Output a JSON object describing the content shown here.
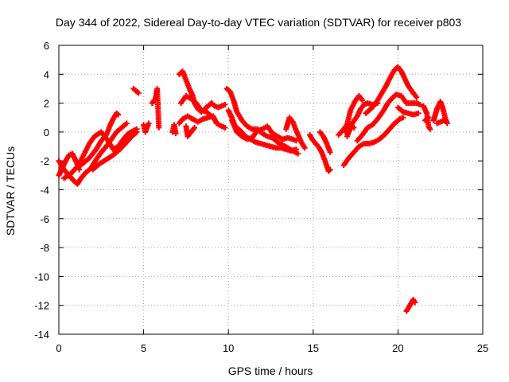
{
  "chart_data": {
    "type": "scatter",
    "title": "Day 344 of 2022, Sidereal Day-to-day VTEC variation (SDTVAR) for receiver p803",
    "xlabel": "GPS time / hours",
    "ylabel": "SDTVAR / TECUs",
    "xlim": [
      0,
      25
    ],
    "ylim": [
      -14,
      6
    ],
    "xticks": [
      0,
      5,
      10,
      15,
      20,
      25
    ],
    "yticks": [
      -14,
      -12,
      -10,
      -8,
      -6,
      -4,
      -2,
      0,
      2,
      4,
      6
    ],
    "grid": true,
    "marker": "+",
    "color": "#ff0000",
    "segments": [
      [
        [
          0.0,
          -3.0
        ],
        [
          0.2,
          -2.5
        ],
        [
          0.4,
          -2.0
        ],
        [
          0.6,
          -1.6
        ],
        [
          0.8,
          -1.5
        ],
        [
          1.0,
          -2.0
        ],
        [
          1.2,
          -2.6
        ]
      ],
      [
        [
          0.0,
          -2.0
        ],
        [
          0.3,
          -2.6
        ],
        [
          0.6,
          -3.0
        ],
        [
          0.9,
          -3.4
        ],
        [
          1.1,
          -3.6
        ],
        [
          1.3,
          -3.2
        ],
        [
          1.6,
          -2.8
        ],
        [
          1.9,
          -2.5
        ],
        [
          2.2,
          -1.9
        ],
        [
          2.5,
          -1.4
        ],
        [
          2.8,
          -1.0
        ],
        [
          3.1,
          -0.5
        ],
        [
          3.4,
          0.0
        ],
        [
          3.7,
          0.3
        ],
        [
          4.0,
          0.6
        ]
      ],
      [
        [
          0.3,
          -3.2
        ],
        [
          0.7,
          -2.9
        ],
        [
          1.0,
          -2.5
        ],
        [
          1.4,
          -2.2
        ],
        [
          1.8,
          -1.8
        ],
        [
          2.2,
          -1.2
        ],
        [
          2.5,
          -0.6
        ],
        [
          2.8,
          -0.2
        ],
        [
          3.0,
          0.4
        ],
        [
          3.2,
          0.9
        ],
        [
          3.4,
          1.3
        ],
        [
          3.5,
          1.2
        ]
      ],
      [
        [
          1.2,
          -2.2
        ],
        [
          1.5,
          -1.5
        ],
        [
          1.8,
          -0.8
        ],
        [
          2.1,
          -0.3
        ],
        [
          2.5,
          0.0
        ],
        [
          2.9,
          -0.6
        ],
        [
          3.2,
          -1.2
        ],
        [
          3.5,
          -1.0
        ],
        [
          3.8,
          -0.5
        ],
        [
          4.1,
          -0.1
        ],
        [
          4.4,
          0.1
        ],
        [
          4.6,
          0.2
        ]
      ],
      [
        [
          2.0,
          -2.6
        ],
        [
          2.4,
          -2.2
        ],
        [
          2.8,
          -1.9
        ],
        [
          3.2,
          -1.6
        ],
        [
          3.6,
          -1.2
        ],
        [
          4.0,
          -0.7
        ],
        [
          4.3,
          -0.3
        ],
        [
          4.6,
          0.0
        ]
      ],
      [
        [
          4.4,
          3.0
        ],
        [
          4.7,
          2.7
        ]
      ],
      [
        [
          5.0,
          0.5
        ],
        [
          5.1,
          0.0
        ],
        [
          5.3,
          0.6
        ]
      ],
      [
        [
          5.5,
          2.0
        ],
        [
          5.7,
          2.3
        ],
        [
          5.8,
          3.0
        ],
        [
          5.9,
          0.3
        ]
      ],
      [
        [
          6.7,
          0.0
        ],
        [
          6.8,
          0.5
        ],
        [
          6.9,
          -0.1
        ]
      ],
      [
        [
          7.1,
          4.0
        ],
        [
          7.3,
          4.2
        ],
        [
          7.5,
          3.6
        ],
        [
          7.7,
          3.0
        ],
        [
          7.9,
          2.5
        ],
        [
          8.0,
          2.0
        ],
        [
          8.2,
          1.6
        ],
        [
          8.4,
          1.4
        ]
      ],
      [
        [
          7.1,
          0.6
        ],
        [
          7.3,
          0.9
        ],
        [
          7.6,
          1.1
        ],
        [
          7.9,
          0.9
        ],
        [
          8.2,
          0.7
        ],
        [
          8.5,
          0.9
        ],
        [
          8.8,
          1.0
        ],
        [
          9.1,
          1.1
        ],
        [
          9.3,
          0.6
        ],
        [
          9.6,
          0.4
        ],
        [
          9.8,
          0.3
        ]
      ],
      [
        [
          7.2,
          2.0
        ],
        [
          7.5,
          2.5
        ],
        [
          7.8,
          2.3
        ],
        [
          8.1,
          2.0
        ],
        [
          8.4,
          1.5
        ],
        [
          8.7,
          1.4
        ],
        [
          8.9,
          1.2
        ],
        [
          9.1,
          1.0
        ]
      ],
      [
        [
          7.5,
          0.4
        ],
        [
          7.6,
          -0.3
        ],
        [
          7.8,
          0.0
        ],
        [
          8.0,
          0.3
        ]
      ],
      [
        [
          8.6,
          1.6
        ],
        [
          8.8,
          1.8
        ],
        [
          9.0,
          2.0
        ],
        [
          9.2,
          1.8
        ],
        [
          9.4,
          1.7
        ],
        [
          9.6,
          1.8
        ],
        [
          9.8,
          1.9
        ]
      ],
      [
        [
          9.9,
          3.0
        ],
        [
          10.1,
          2.8
        ],
        [
          10.3,
          2.2
        ],
        [
          10.5,
          1.4
        ],
        [
          10.8,
          0.8
        ],
        [
          11.1,
          0.4
        ],
        [
          11.4,
          0.2
        ],
        [
          11.7,
          0.2
        ],
        [
          12.0,
          -0.1
        ],
        [
          12.3,
          -0.3
        ],
        [
          12.6,
          -0.4
        ],
        [
          12.9,
          -0.7
        ],
        [
          13.2,
          -0.9
        ],
        [
          13.5,
          -1.1
        ],
        [
          13.8,
          -1.3
        ],
        [
          14.1,
          -1.5
        ]
      ],
      [
        [
          10.0,
          1.5
        ],
        [
          10.2,
          1.0
        ],
        [
          10.4,
          0.4
        ],
        [
          10.7,
          0.1
        ],
        [
          11.0,
          -0.3
        ],
        [
          11.3,
          -0.5
        ],
        [
          11.6,
          -0.7
        ],
        [
          11.9,
          -0.8
        ],
        [
          12.2,
          -0.9
        ],
        [
          12.5,
          -1.0
        ],
        [
          12.8,
          -1.1
        ],
        [
          13.1,
          -1.1
        ],
        [
          13.4,
          -1.2
        ],
        [
          13.7,
          -1.3
        ],
        [
          14.0,
          -1.2
        ]
      ],
      [
        [
          10.2,
          0.8
        ],
        [
          10.5,
          0.0
        ],
        [
          10.8,
          -0.3
        ],
        [
          11.1,
          -0.5
        ],
        [
          11.4,
          -0.4
        ],
        [
          11.7,
          0.1
        ],
        [
          12.0,
          0.2
        ],
        [
          12.3,
          0.4
        ],
        [
          12.6,
          -0.1
        ],
        [
          12.9,
          -0.3
        ],
        [
          13.2,
          -0.5
        ],
        [
          13.5,
          -0.4
        ],
        [
          13.8,
          -0.5
        ],
        [
          14.0,
          -0.6
        ]
      ],
      [
        [
          13.4,
          0.2
        ],
        [
          13.6,
          1.0
        ],
        [
          13.8,
          0.7
        ],
        [
          14.0,
          0.1
        ],
        [
          14.3,
          -0.7
        ],
        [
          14.5,
          -1.1
        ]
      ],
      [
        [
          14.8,
          -0.2
        ],
        [
          15.0,
          -0.6
        ],
        [
          15.3,
          -1.0
        ],
        [
          15.5,
          -1.4
        ],
        [
          15.7,
          -2.0
        ],
        [
          15.9,
          -2.7
        ],
        [
          16.0,
          -2.6
        ]
      ],
      [
        [
          15.4,
          0.0
        ],
        [
          15.6,
          -0.3
        ],
        [
          15.8,
          -0.8
        ],
        [
          16.0,
          -1.4
        ]
      ],
      [
        [
          16.5,
          -0.2
        ],
        [
          16.8,
          0.2
        ],
        [
          17.0,
          0.5
        ],
        [
          17.2,
          0.4
        ],
        [
          17.4,
          0.3
        ]
      ],
      [
        [
          16.8,
          -2.3
        ],
        [
          17.1,
          -1.8
        ],
        [
          17.4,
          -1.4
        ],
        [
          17.7,
          -1.0
        ],
        [
          18.0,
          -0.8
        ],
        [
          18.3,
          -0.8
        ],
        [
          18.6,
          -0.7
        ],
        [
          18.9,
          -0.5
        ],
        [
          19.2,
          -0.2
        ],
        [
          19.5,
          0.2
        ],
        [
          19.8,
          0.6
        ],
        [
          20.1,
          0.9
        ],
        [
          20.3,
          1.0
        ]
      ],
      [
        [
          17.0,
          -0.3
        ],
        [
          17.3,
          0.6
        ],
        [
          17.6,
          1.1
        ],
        [
          17.8,
          1.6
        ],
        [
          18.0,
          1.9
        ],
        [
          18.2,
          2.0
        ],
        [
          18.5,
          1.9
        ],
        [
          18.8,
          2.0
        ]
      ],
      [
        [
          16.9,
          0.0
        ],
        [
          17.2,
          1.5
        ],
        [
          17.5,
          2.2
        ],
        [
          17.7,
          2.5
        ],
        [
          17.9,
          2.2
        ]
      ],
      [
        [
          17.6,
          -0.6
        ],
        [
          17.9,
          -0.2
        ],
        [
          18.2,
          0.3
        ],
        [
          18.5,
          0.5
        ],
        [
          18.8,
          0.9
        ],
        [
          19.1,
          1.4
        ],
        [
          19.4,
          2.0
        ],
        [
          19.7,
          2.4
        ],
        [
          19.9,
          2.6
        ],
        [
          20.2,
          2.5
        ],
        [
          20.5,
          2.0
        ],
        [
          20.8,
          2.0
        ],
        [
          21.1,
          2.0
        ],
        [
          21.3,
          1.9
        ]
      ],
      [
        [
          18.1,
          1.3
        ],
        [
          18.4,
          1.6
        ],
        [
          18.7,
          2.0
        ],
        [
          19.0,
          2.6
        ],
        [
          19.3,
          3.2
        ],
        [
          19.6,
          3.9
        ],
        [
          19.8,
          4.3
        ],
        [
          20.0,
          4.5
        ],
        [
          20.2,
          4.2
        ],
        [
          20.4,
          3.7
        ],
        [
          20.6,
          3.2
        ],
        [
          20.9,
          2.7
        ],
        [
          21.1,
          2.4
        ]
      ],
      [
        [
          20.0,
          1.7
        ],
        [
          20.3,
          1.4
        ],
        [
          20.6,
          1.3
        ],
        [
          20.9,
          1.2
        ],
        [
          21.2,
          1.3
        ]
      ],
      [
        [
          20.5,
          -12.4
        ],
        [
          20.7,
          -12.0
        ],
        [
          20.9,
          -11.6
        ],
        [
          21.0,
          -11.8
        ]
      ],
      [
        [
          21.5,
          1.8
        ],
        [
          21.7,
          1.3
        ],
        [
          21.8,
          0.4
        ],
        [
          21.9,
          0.2
        ]
      ],
      [
        [
          21.6,
          0.8
        ],
        [
          21.8,
          1.0
        ]
      ],
      [
        [
          22.1,
          0.8
        ],
        [
          22.2,
          1.2
        ],
        [
          22.3,
          1.6
        ],
        [
          22.5,
          2.1
        ],
        [
          22.6,
          1.8
        ],
        [
          22.7,
          1.4
        ],
        [
          22.8,
          0.9
        ],
        [
          22.9,
          0.6
        ]
      ],
      [
        [
          22.3,
          0.6
        ],
        [
          22.5,
          0.7
        ],
        [
          22.7,
          0.8
        ]
      ]
    ]
  }
}
